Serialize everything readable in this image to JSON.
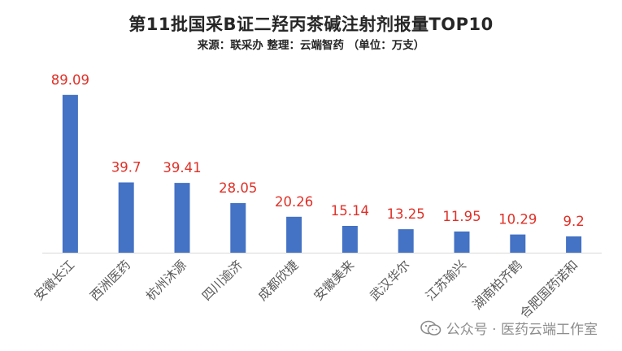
{
  "chart_data": {
    "type": "bar",
    "title": "第11批国采B证二羟丙茶碱注射剂报量TOP10",
    "subtitle": "来源：联采办 整理：云端智药 （单位：万支）",
    "categories": [
      "安徽长江",
      "西洲医药",
      "杭州沐源",
      "四川逾济",
      "成都欣捷",
      "安徽美来",
      "武汉华尔",
      "江苏瑜兴",
      "湖南柏齐鹤",
      "合肥国药诺和"
    ],
    "values": [
      89.09,
      39.7,
      39.41,
      28.05,
      20.26,
      15.14,
      13.25,
      11.95,
      10.29,
      9.2
    ],
    "value_labels": [
      "89.09",
      "39.7",
      "39.41",
      "28.05",
      "20.26",
      "15.14",
      "13.25",
      "11.95",
      "10.29",
      "9.2"
    ],
    "xlabel": "",
    "ylabel": "",
    "ylim": [
      0,
      100
    ],
    "grid": false,
    "legend": "none",
    "bar_color": "#4472C4",
    "label_color": "#E03027"
  },
  "watermark": {
    "text": "公众号 · 医药云端工作室",
    "icon": "wechat-icon"
  }
}
